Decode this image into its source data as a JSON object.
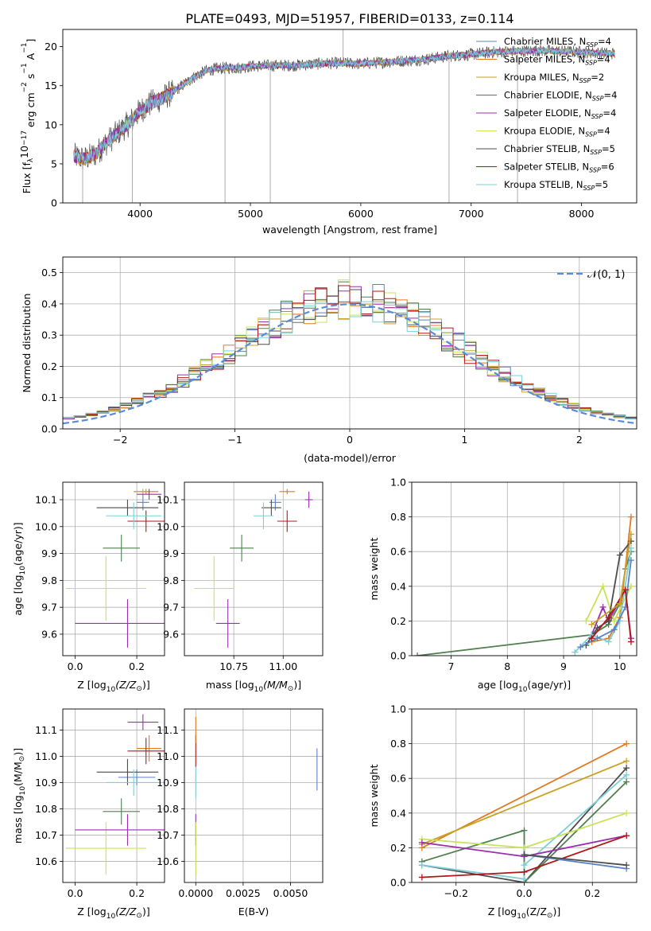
{
  "title": "PLATE=0493, MJD=51957, FIBERID=0133, z=0.114",
  "colors": {
    "chabrier_miles": "#5b84c4",
    "salpeter_miles": "#e07b20",
    "kroupa_miles": "#c9a227",
    "chabrier_elodie": "#4f7f4f",
    "salpeter_elodie": "#9b2fae",
    "kroupa_elodie": "#c7e35a",
    "chabrier_stelib": "#4d4d4d",
    "salpeter_stelib": "#b01818",
    "kroupa_stelib": "#7ccfd6",
    "normal_curve": "#5b8bd6",
    "grid": "#b0b0b0"
  },
  "chart_data": [
    {
      "id": "spectrum",
      "type": "line",
      "xlabel": "wavelength [Angstrom, rest frame]",
      "ylabel": "Flux [f",
      "ylabel_parts": [
        "Flux [f",
        "λ",
        "10",
        "−17",
        " erg cm",
        "−2",
        " s",
        "−1",
        " A",
        "−1",
        "]"
      ],
      "xlim": [
        3300,
        8500
      ],
      "ylim": [
        0,
        22.2
      ],
      "xticks": [
        4000,
        5000,
        6000,
        7000,
        8000
      ],
      "yticks": [
        0,
        5,
        10,
        15,
        20
      ],
      "legend_position": "right",
      "legend": [
        {
          "text": "Chabrier MILES, N",
          "sub": "SSP",
          "suffix": "=4",
          "color_key": "chabrier_miles"
        },
        {
          "text": "Salpeter MILES, N",
          "sub": "SSP",
          "suffix": "=4",
          "color_key": "salpeter_miles"
        },
        {
          "text": "Kroupa MILES, N",
          "sub": "SSP",
          "suffix": "=2",
          "color_key": "kroupa_miles"
        },
        {
          "text": "Chabrier ELODIE, N",
          "sub": "SSP",
          "suffix": "=4",
          "color_key": "chabrier_elodie"
        },
        {
          "text": "Salpeter ELODIE, N",
          "sub": "SSP",
          "suffix": "=4",
          "color_key": "salpeter_elodie"
        },
        {
          "text": "Kroupa ELODIE, N",
          "sub": "SSP",
          "suffix": "=4",
          "color_key": "kroupa_elodie"
        },
        {
          "text": "Chabrier STELIB, N",
          "sub": "SSP",
          "suffix": "=5",
          "color_key": "chabrier_stelib"
        },
        {
          "text": "Salpeter STELIB, N",
          "sub": "SSP",
          "suffix": "=6",
          "color_key": "salpeter_stelib"
        },
        {
          "text": "Kroupa STELIB, N",
          "sub": "SSP",
          "suffix": "=5",
          "color_key": "kroupa_stelib"
        }
      ],
      "continuum": {
        "x": [
          3400,
          3500,
          3600,
          3700,
          3800,
          3900,
          4000,
          4100,
          4200,
          4300,
          4400,
          4500,
          4600,
          4700,
          4800,
          4900,
          5000,
          5200,
          5400,
          5600,
          5800,
          6000,
          6200,
          6400,
          6600,
          6800,
          7000,
          7200,
          7400,
          7600,
          7800,
          8000,
          8300
        ],
        "y": [
          6.0,
          5.6,
          6.3,
          7.8,
          9.0,
          10.2,
          11.8,
          12.8,
          13.4,
          14.2,
          15.2,
          16.2,
          16.9,
          17.2,
          17.3,
          17.3,
          17.5,
          17.6,
          17.6,
          17.8,
          17.9,
          17.8,
          18.0,
          18.2,
          18.4,
          18.8,
          19.0,
          19.3,
          19.4,
          19.5,
          19.4,
          19.3,
          19.1
        ]
      },
      "spikes": [
        {
          "x": 3480,
          "y": 0.0
        },
        {
          "x": 3930,
          "y": 0.0
        },
        {
          "x": 4770,
          "y": 0.0
        },
        {
          "x": 5180,
          "y": 0.0
        },
        {
          "x": 5840,
          "y": 22.2
        },
        {
          "x": 6800,
          "y": 0.0
        },
        {
          "x": 7420,
          "y": 0.0
        }
      ]
    },
    {
      "id": "residuals",
      "type": "line",
      "xlabel": "(data-model)/error",
      "ylabel": "Normed distribution",
      "xlim": [
        -2.5,
        2.5
      ],
      "ylim": [
        0,
        0.55
      ],
      "xticks": [
        -2,
        -1,
        0,
        1,
        2
      ],
      "xtick_labels": [
        "−2",
        "−1",
        "0",
        "1",
        "2"
      ],
      "yticks": [
        0.0,
        0.1,
        0.2,
        0.3,
        0.4,
        0.5
      ],
      "ytick_labels": [
        "0.0",
        "0.1",
        "0.2",
        "0.3",
        "0.4",
        "0.5"
      ],
      "legend_position": "top-right",
      "legend_label": "𝒩(0, 1)",
      "normal": {
        "mu": 0,
        "sigma": 1
      }
    },
    {
      "id": "age-vs-z",
      "type": "scatter",
      "xlabel": "Z [log",
      "xlabel_parts": [
        "Z [log",
        "10",
        "(Z/Z",
        "⊙",
        ")]"
      ],
      "ylabel_parts": [
        "age  [log",
        "10",
        "(age/yr)]"
      ],
      "xlim": [
        -0.04,
        0.29
      ],
      "ylim": [
        9.52,
        10.165
      ],
      "xticks": [
        0.0,
        0.2
      ],
      "xtick_labels": [
        "0.0",
        "0.2"
      ],
      "yticks": [
        9.6,
        9.7,
        9.8,
        9.9,
        10.0,
        10.1
      ],
      "yticks_labels": [
        "9.6",
        "9.7",
        "9.8",
        "9.9",
        "10.0",
        "10.1"
      ],
      "points": [
        {
          "color_key": "chabrier_miles",
          "x": 0.22,
          "xerr": 0.02,
          "y": 10.09,
          "yerr": 0.03
        },
        {
          "color_key": "salpeter_miles",
          "x": 0.23,
          "xerr": 0.04,
          "y": 10.13,
          "yerr": 0.01
        },
        {
          "color_key": "kroupa_miles",
          "x": 0.22,
          "xerr": 0.03,
          "y": 10.13,
          "yerr": 0.01
        },
        {
          "color_key": "chabrier_elodie",
          "x": 0.15,
          "xerr": 0.06,
          "y": 9.92,
          "yerr": 0.05
        },
        {
          "color_key": "salpeter_elodie",
          "x": 0.17,
          "xerr": 0.17,
          "y": 9.64,
          "yerr": 0.09
        },
        {
          "color_key": "kroupa_elodie",
          "x": 0.1,
          "xerr": 0.13,
          "y": 9.77,
          "yerr": 0.12
        },
        {
          "color_key": "chabrier_stelib",
          "x": 0.17,
          "xerr": 0.1,
          "y": 10.07,
          "yerr": 0.03
        },
        {
          "color_key": "salpeter_stelib",
          "x": 0.23,
          "xerr": 0.06,
          "y": 10.02,
          "yerr": 0.04
        },
        {
          "color_key": "kroupa_stelib",
          "x": 0.19,
          "xerr": 0.09,
          "y": 10.04,
          "yerr": 0.05
        },
        {
          "color_key": "salpeter_elodie",
          "x": 0.24,
          "xerr": 0.04,
          "y": 10.12,
          "yerr": 0.02
        }
      ]
    },
    {
      "id": "age-vs-mass",
      "type": "scatter",
      "xlabel_parts": [
        "mass [log",
        "10",
        "(M/M",
        "⊙",
        ")]"
      ],
      "xlim": [
        10.5,
        11.2
      ],
      "ylim": [
        9.52,
        10.165
      ],
      "xticks": [
        10.75,
        11.0
      ],
      "xtick_labels": [
        "10.75",
        "11.00"
      ],
      "yticks": [
        9.6,
        9.7,
        9.8,
        9.9,
        10.0,
        10.1
      ],
      "yticks_labels": [
        "9.6",
        "9.7",
        "9.8",
        "9.9",
        "10.0",
        "10.1"
      ],
      "points": [
        {
          "color_key": "chabrier_miles",
          "x": 10.96,
          "xerr": 0.03,
          "y": 10.09,
          "yerr": 0.03
        },
        {
          "color_key": "salpeter_miles",
          "x": 11.02,
          "xerr": 0.04,
          "y": 10.13,
          "yerr": 0.01
        },
        {
          "color_key": "kroupa_elodie",
          "x": 10.65,
          "xerr": 0.1,
          "y": 9.77,
          "yerr": 0.12
        },
        {
          "color_key": "salpeter_elodie",
          "x": 10.72,
          "xerr": 0.06,
          "y": 9.64,
          "yerr": 0.09
        },
        {
          "color_key": "chabrier_elodie",
          "x": 10.79,
          "xerr": 0.06,
          "y": 9.92,
          "yerr": 0.05
        },
        {
          "color_key": "chabrier_stelib",
          "x": 10.94,
          "xerr": 0.05,
          "y": 10.07,
          "yerr": 0.03
        },
        {
          "color_key": "salpeter_stelib",
          "x": 11.02,
          "xerr": 0.05,
          "y": 10.02,
          "yerr": 0.04
        },
        {
          "color_key": "kroupa_stelib",
          "x": 10.9,
          "xerr": 0.05,
          "y": 10.04,
          "yerr": 0.05
        },
        {
          "color_key": "salpeter_elodie",
          "x": 11.13,
          "xerr": 0.02,
          "y": 10.1,
          "yerr": 0.03
        }
      ]
    },
    {
      "id": "weight-vs-age",
      "type": "line",
      "xlabel_parts": [
        "age  [log",
        "10",
        "(age/yr)]"
      ],
      "ylabel": "mass weight",
      "xlim": [
        6.3,
        10.3
      ],
      "ylim": [
        0.0,
        1.0
      ],
      "xticks": [
        7,
        8,
        9,
        10
      ],
      "xtick_labels": [
        "7",
        "8",
        "9",
        "10"
      ],
      "yticks": [
        0.0,
        0.2,
        0.4,
        0.6,
        0.8,
        1.0
      ],
      "ytick_labels": [
        "0.0",
        "0.2",
        "0.4",
        "0.6",
        "0.8",
        "1.0"
      ],
      "series": [
        {
          "color_key": "chabrier_elodie",
          "x": [
            6.4,
            9.5,
            9.8,
            10.0,
            10.1,
            10.2
          ],
          "y": [
            0.0,
            0.12,
            0.18,
            0.3,
            0.5,
            0.6
          ]
        },
        {
          "color_key": "salpeter_miles",
          "x": [
            9.5,
            9.8,
            10.0,
            10.2
          ],
          "y": [
            0.08,
            0.1,
            0.22,
            0.8
          ]
        },
        {
          "color_key": "kroupa_elodie",
          "x": [
            9.4,
            9.7,
            9.9,
            10.2
          ],
          "y": [
            0.2,
            0.4,
            0.2,
            0.4
          ]
        },
        {
          "color_key": "salpeter_elodie",
          "x": [
            9.5,
            9.7,
            9.8,
            10.1,
            10.2
          ],
          "y": [
            0.12,
            0.28,
            0.2,
            0.38,
            0.1
          ]
        },
        {
          "color_key": "chabrier_stelib",
          "x": [
            9.4,
            9.6,
            9.8,
            10.0,
            10.2
          ],
          "y": [
            0.06,
            0.16,
            0.2,
            0.58,
            0.66
          ]
        },
        {
          "color_key": "kroupa_stelib",
          "x": [
            9.2,
            9.5,
            9.8,
            10.0,
            10.2
          ],
          "y": [
            0.02,
            0.12,
            0.08,
            0.2,
            0.62
          ]
        },
        {
          "color_key": "chabrier_miles",
          "x": [
            9.3,
            9.6,
            9.9,
            10.1,
            10.2
          ],
          "y": [
            0.05,
            0.1,
            0.15,
            0.28,
            0.55
          ]
        },
        {
          "color_key": "salpeter_stelib",
          "x": [
            9.5,
            9.8,
            10.1,
            10.2
          ],
          "y": [
            0.1,
            0.22,
            0.38,
            0.08
          ]
        },
        {
          "color_key": "kroupa_miles",
          "x": [
            9.5,
            10.0,
            10.2
          ],
          "y": [
            0.18,
            0.3,
            0.7
          ]
        }
      ]
    },
    {
      "id": "mass-vs-z",
      "type": "scatter",
      "xlabel_parts": [
        "Z [log",
        "10",
        "(Z/Z",
        "⊙",
        ")]"
      ],
      "ylabel_parts": [
        "mass [log",
        "10",
        "(M/M",
        "⊙",
        ")]"
      ],
      "xlim": [
        -0.04,
        0.29
      ],
      "ylim": [
        10.52,
        11.18
      ],
      "xticks": [
        0.0,
        0.2
      ],
      "xtick_labels": [
        "0.0",
        "0.2"
      ],
      "yticks": [
        10.6,
        10.7,
        10.8,
        10.9,
        11.0,
        11.1
      ],
      "yticks_labels": [
        "10.6",
        "10.7",
        "10.8",
        "10.9",
        "11.0",
        "11.1"
      ],
      "points": [
        {
          "color_key": "chabrier_miles",
          "x": 0.2,
          "xerr": 0.06,
          "y": 10.92,
          "yerr": 0.03
        },
        {
          "color_key": "salpeter_miles",
          "x": 0.24,
          "xerr": 0.04,
          "y": 11.03,
          "yerr": 0.05
        },
        {
          "color_key": "kroupa_elodie",
          "x": 0.1,
          "xerr": 0.13,
          "y": 10.65,
          "yerr": 0.1
        },
        {
          "color_key": "salpeter_elodie",
          "x": 0.17,
          "xerr": 0.17,
          "y": 10.72,
          "yerr": 0.06
        },
        {
          "color_key": "chabrier_elodie",
          "x": 0.15,
          "xerr": 0.06,
          "y": 10.79,
          "yerr": 0.05
        },
        {
          "color_key": "chabrier_stelib",
          "x": 0.17,
          "xerr": 0.1,
          "y": 10.94,
          "yerr": 0.05
        },
        {
          "color_key": "salpeter_stelib",
          "x": 0.23,
          "xerr": 0.06,
          "y": 11.02,
          "yerr": 0.05
        },
        {
          "color_key": "kroupa_stelib",
          "x": 0.19,
          "xerr": 0.09,
          "y": 10.9,
          "yerr": 0.05
        },
        {
          "color_key": "salpeter_elodie",
          "x": 0.22,
          "xerr": 0.05,
          "y": 11.13,
          "yerr": 0.03
        }
      ]
    },
    {
      "id": "mass-vs-ebv",
      "type": "scatter",
      "xlabel": "E(B-V)",
      "xlim": [
        -0.0006,
        0.0067
      ],
      "ylim": [
        10.52,
        11.18
      ],
      "xticks": [
        0.0,
        0.0025,
        0.005
      ],
      "xtick_labels": [
        "0.0000",
        "0.0025",
        "0.0050"
      ],
      "yticks": [
        10.6,
        10.7,
        10.8,
        10.9,
        11.0,
        11.1
      ],
      "yticks_labels": [
        "10.6",
        "10.7",
        "10.8",
        "10.9",
        "11.0",
        "11.1"
      ],
      "points": [
        {
          "color_key": "chabrier_miles",
          "x": 0.0064,
          "xerr": 0.0,
          "y": 10.95,
          "yerr": 0.08
        },
        {
          "color_key": "salpeter_stelib",
          "x": 0.0,
          "xerr": 0.0,
          "y": 11.02,
          "yerr": 0.06
        },
        {
          "color_key": "salpeter_elodie",
          "x": 0.0,
          "xerr": 0.0,
          "y": 10.72,
          "yerr": 0.06
        },
        {
          "color_key": "kroupa_elodie",
          "x": 0.0,
          "xerr": 0.0,
          "y": 10.65,
          "yerr": 0.1
        },
        {
          "color_key": "kroupa_stelib",
          "x": 0.0,
          "xerr": 0.0,
          "y": 10.9,
          "yerr": 0.06
        },
        {
          "color_key": "salpeter_miles",
          "x": 0.0,
          "xerr": 0.0,
          "y": 11.1,
          "yerr": 0.05
        }
      ]
    },
    {
      "id": "weight-vs-z",
      "type": "line",
      "xlabel_parts": [
        "Z [log",
        "10",
        "(Z/Z",
        "⊙",
        ")]"
      ],
      "ylabel": "mass weight",
      "xlim": [
        -0.33,
        0.33
      ],
      "ylim": [
        0.0,
        1.0
      ],
      "xticks": [
        -0.2,
        0.0,
        0.2
      ],
      "xtick_labels": [
        "−0.2",
        "0.0",
        "0.2"
      ],
      "yticks": [
        0.0,
        0.2,
        0.4,
        0.6,
        0.8,
        1.0
      ],
      "ytick_labels": [
        "0.0",
        "0.2",
        "0.4",
        "0.6",
        "0.8",
        "1.0"
      ],
      "series": [
        {
          "color_key": "salpeter_miles",
          "x": [
            -0.3,
            0.3
          ],
          "y": [
            0.2,
            0.8
          ]
        },
        {
          "color_key": "kroupa_miles",
          "x": [
            -0.3,
            0.3
          ],
          "y": [
            0.22,
            0.7
          ]
        },
        {
          "color_key": "chabrier_stelib",
          "x": [
            -0.3,
            0.0,
            0.3
          ],
          "y": [
            0.1,
            0.0,
            0.66
          ]
        },
        {
          "color_key": "chabrier_elodie",
          "x": [
            -0.3,
            0.0,
            0.0,
            0.3
          ],
          "y": [
            0.12,
            0.3,
            0.0,
            0.58
          ]
        },
        {
          "color_key": "kroupa_stelib",
          "x": [
            -0.3,
            0.0,
            0.0,
            0.3
          ],
          "y": [
            0.1,
            0.02,
            0.1,
            0.62
          ]
        },
        {
          "color_key": "kroupa_elodie",
          "x": [
            -0.3,
            0.0,
            0.3
          ],
          "y": [
            0.25,
            0.2,
            0.4
          ]
        },
        {
          "color_key": "salpeter_elodie",
          "x": [
            -0.3,
            0.0,
            0.3
          ],
          "y": [
            0.23,
            0.15,
            0.27
          ]
        },
        {
          "color_key": "salpeter_stelib",
          "x": [
            -0.3,
            0.0,
            0.3
          ],
          "y": [
            0.03,
            0.06,
            0.27
          ]
        },
        {
          "color_key": "chabrier_miles",
          "x": [
            0.0,
            0.3
          ],
          "y": [
            0.16,
            0.08
          ]
        },
        {
          "color_key": "chabrier_stelib",
          "x": [
            0.0,
            0.3
          ],
          "y": [
            0.16,
            0.1
          ]
        }
      ]
    }
  ]
}
